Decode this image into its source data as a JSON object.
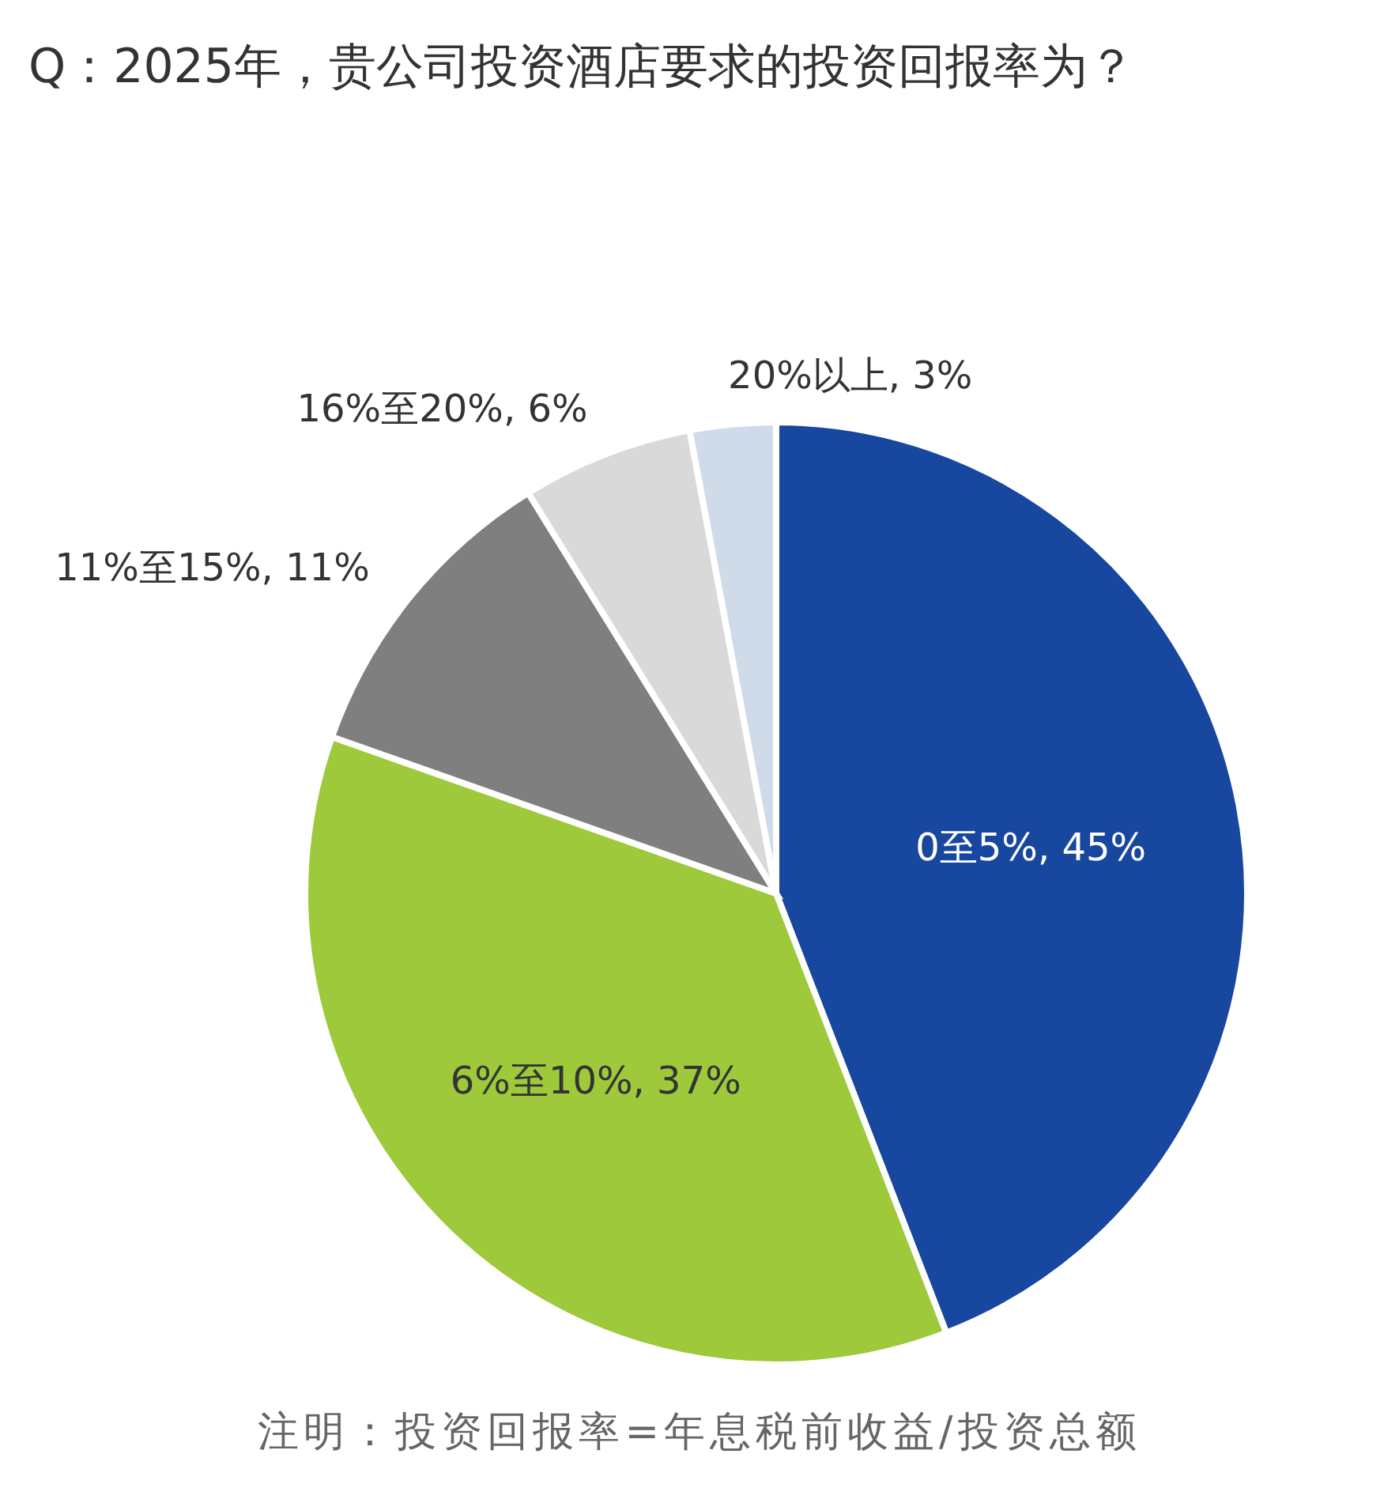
{
  "chart_data": {
    "type": "pie",
    "title": "Q：2025年，贵公司投资酒店要求的投资回报率为？",
    "categories": [
      "0至5%",
      "6%至10%",
      "11%至15%",
      "16%至20%",
      "20%以上"
    ],
    "values": [
      45,
      37,
      11,
      6,
      3
    ],
    "value_labels": [
      "45%",
      "37%",
      "11%",
      "6%",
      "3%"
    ],
    "colors": [
      "#17479e",
      "#9dc93b",
      "#7f7f7f",
      "#d9d9d9",
      "#d0dbe9"
    ],
    "annotations": [
      "注明：投资回报率=年息税前收益/投资总额"
    ]
  }
}
